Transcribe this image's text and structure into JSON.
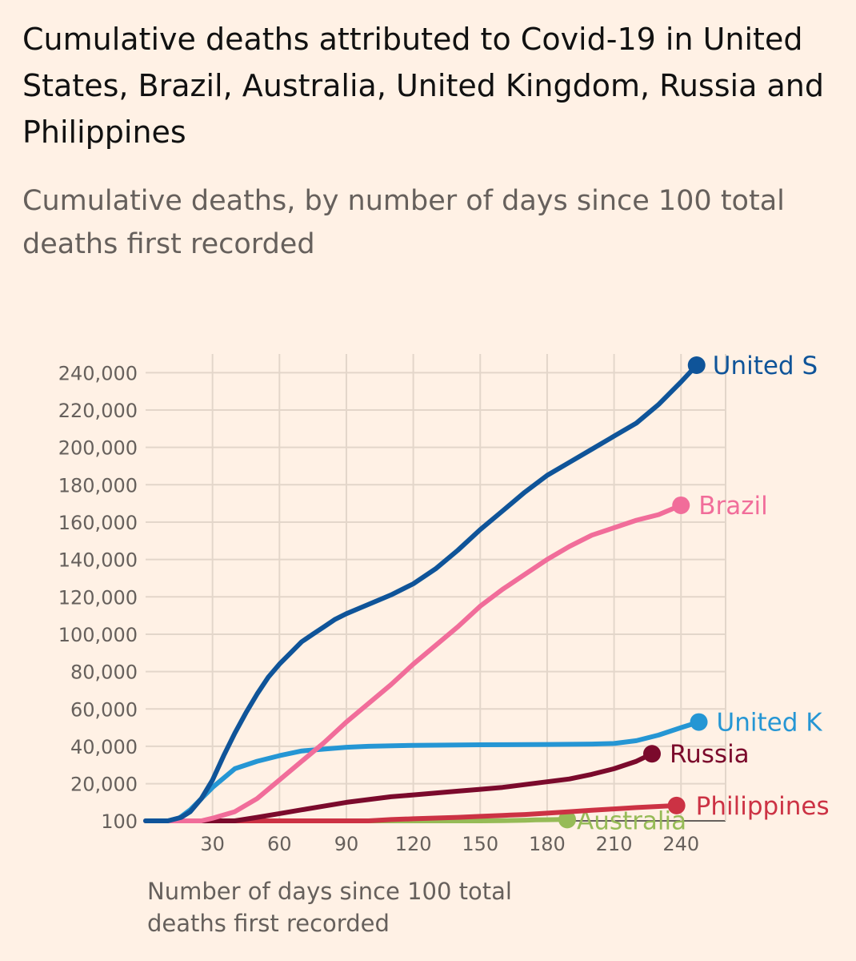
{
  "title": "Cumulative deaths attributed to Covid-19 in United States, Brazil, Australia, United Kingdom, Russia and Philippines",
  "subtitle": "Cumulative deaths, by number of days since 100 total deaths first recorded",
  "chart_data": {
    "type": "line",
    "xlabel": "Number of days since 100 total deaths first recorded",
    "ylabel": "",
    "xlim": [
      0,
      260
    ],
    "ylim": [
      100,
      250000
    ],
    "xticks": [
      30,
      60,
      90,
      120,
      150,
      180,
      210,
      240
    ],
    "xtick_labels": [
      "30",
      "60",
      "90",
      "120",
      "150",
      "180",
      "210",
      "240"
    ],
    "yticks": [
      100,
      20000,
      40000,
      60000,
      80000,
      100000,
      120000,
      140000,
      160000,
      180000,
      200000,
      220000,
      240000
    ],
    "ytick_labels": [
      "100",
      "20,000",
      "40,000",
      "60,000",
      "80,000",
      "100,000",
      "120,000",
      "140,000",
      "160,000",
      "180,000",
      "200,000",
      "220,000",
      "240,000"
    ],
    "grid": true,
    "series": [
      {
        "name": "United S",
        "color": "#0f5499",
        "x": [
          0,
          10,
          16,
          20,
          25,
          30,
          35,
          40,
          45,
          50,
          55,
          60,
          65,
          70,
          75,
          80,
          85,
          90,
          100,
          110,
          120,
          130,
          140,
          150,
          160,
          170,
          180,
          190,
          200,
          210,
          220,
          230,
          240,
          247
        ],
        "y": [
          100,
          100,
          2000,
          5000,
          12000,
          22000,
          35000,
          47000,
          58000,
          68000,
          77000,
          84000,
          90000,
          96000,
          100000,
          104000,
          108000,
          111000,
          116000,
          121000,
          127000,
          135000,
          145000,
          156000,
          166000,
          176000,
          185000,
          192000,
          199000,
          206000,
          213000,
          223000,
          235000,
          244000
        ]
      },
      {
        "name": "Brazil",
        "color": "#f16d9a",
        "x": [
          0,
          25,
          30,
          40,
          50,
          60,
          70,
          80,
          90,
          100,
          110,
          120,
          130,
          140,
          150,
          160,
          170,
          180,
          190,
          200,
          210,
          220,
          230,
          240
        ],
        "y": [
          100,
          100,
          1500,
          5000,
          12000,
          22000,
          32000,
          42000,
          53000,
          63000,
          73000,
          84000,
          94000,
          104000,
          115000,
          124000,
          132000,
          140000,
          147000,
          153000,
          157000,
          161000,
          164000,
          169000
        ]
      },
      {
        "name": "United K",
        "color": "#2596d4",
        "x": [
          0,
          10,
          15,
          20,
          25,
          30,
          35,
          40,
          50,
          60,
          70,
          80,
          90,
          100,
          120,
          150,
          180,
          200,
          210,
          220,
          230,
          240,
          248
        ],
        "y": [
          100,
          100,
          1500,
          6000,
          12000,
          18000,
          23000,
          28000,
          32000,
          35000,
          37500,
          38500,
          39500,
          40000,
          40500,
          40800,
          41000,
          41200,
          41500,
          43000,
          46000,
          50000,
          53000
        ]
      },
      {
        "name": "Russia",
        "color": "#7b0a2c",
        "x": [
          0,
          40,
          50,
          60,
          70,
          80,
          90,
          100,
          110,
          120,
          130,
          140,
          150,
          160,
          170,
          180,
          190,
          200,
          210,
          220,
          227
        ],
        "y": [
          100,
          100,
          2000,
          4000,
          6000,
          8000,
          10000,
          11500,
          13000,
          14000,
          15000,
          16000,
          17000,
          18000,
          19500,
          21000,
          22500,
          25000,
          28000,
          32000,
          36000
        ]
      },
      {
        "name": "Philippines",
        "color": "#cc3244",
        "x": [
          0,
          100,
          110,
          120,
          130,
          140,
          150,
          160,
          170,
          180,
          190,
          200,
          210,
          220,
          230,
          238
        ],
        "y": [
          100,
          100,
          800,
          1200,
          1600,
          2000,
          2500,
          3000,
          3500,
          4200,
          5000,
          5800,
          6500,
          7200,
          7800,
          8300
        ]
      },
      {
        "name": "Australia",
        "color": "#96bb57",
        "x": [
          0,
          150,
          160,
          170,
          175,
          180,
          185,
          189
        ],
        "y": [
          100,
          100,
          200,
          400,
          600,
          700,
          800,
          800
        ]
      }
    ]
  }
}
